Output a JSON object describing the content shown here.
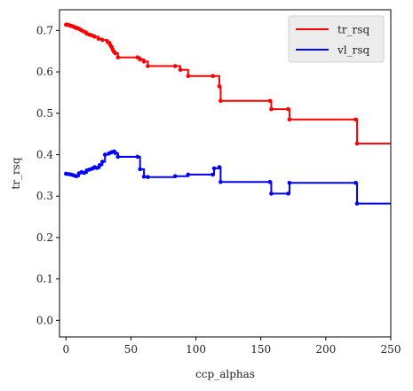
{
  "chart_data": {
    "type": "line",
    "title": "",
    "xlabel": "ccp_alphas",
    "ylabel": "tr_rsq",
    "xlim": [
      -5,
      250
    ],
    "ylim": [
      -0.04,
      0.75
    ],
    "xticks": [
      0,
      50,
      100,
      150,
      200,
      250
    ],
    "xtick_labels": [
      "0",
      "50",
      "100",
      "150",
      "200",
      "250"
    ],
    "yticks": [
      0.0,
      0.1,
      0.2,
      0.3,
      0.4,
      0.5,
      0.6,
      0.7
    ],
    "ytick_labels": [
      "0.0",
      "0.1",
      "0.2",
      "0.3",
      "0.4",
      "0.5",
      "0.6",
      "0.7"
    ],
    "grid": false,
    "legend_position": "top-right",
    "step": "post",
    "series": [
      {
        "name": "tr_rsq",
        "color": "#ff0000",
        "x": [
          0,
          1,
          2,
          3,
          4,
          5,
          6,
          7,
          8,
          9,
          10,
          11,
          12,
          14,
          16,
          18,
          20,
          22,
          25,
          28,
          32,
          34,
          35,
          36,
          37,
          38,
          40,
          55,
          57,
          60,
          63,
          84,
          88,
          94,
          113,
          118,
          119,
          157,
          158,
          171,
          172,
          223,
          224,
          250
        ],
        "y": [
          0.714,
          0.714,
          0.713,
          0.712,
          0.711,
          0.71,
          0.709,
          0.707,
          0.706,
          0.705,
          0.704,
          0.702,
          0.7,
          0.697,
          0.692,
          0.69,
          0.688,
          0.685,
          0.68,
          0.677,
          0.672,
          0.665,
          0.66,
          0.653,
          0.648,
          0.645,
          0.635,
          0.635,
          0.63,
          0.625,
          0.614,
          0.614,
          0.605,
          0.59,
          0.59,
          0.565,
          0.53,
          0.53,
          0.51,
          0.51,
          0.485,
          0.485,
          0.427,
          0.427
        ]
      },
      {
        "name": "vl_rsq",
        "color": "#0000ff",
        "x": [
          0,
          2,
          4,
          6,
          8,
          10,
          12,
          14,
          16,
          18,
          20,
          22,
          24,
          26,
          28,
          30,
          33,
          35,
          37,
          38,
          40,
          55,
          57,
          60,
          63,
          84,
          94,
          113,
          114,
          118,
          119,
          157,
          158,
          171,
          172,
          223,
          224,
          250
        ],
        "y": [
          0.354,
          0.353,
          0.352,
          0.35,
          0.348,
          0.355,
          0.358,
          0.356,
          0.362,
          0.364,
          0.366,
          0.37,
          0.368,
          0.375,
          0.383,
          0.4,
          0.403,
          0.406,
          0.408,
          0.404,
          0.395,
          0.395,
          0.365,
          0.347,
          0.346,
          0.348,
          0.352,
          0.352,
          0.367,
          0.37,
          0.334,
          0.334,
          0.306,
          0.306,
          0.332,
          0.332,
          0.282,
          0.282
        ]
      }
    ]
  }
}
